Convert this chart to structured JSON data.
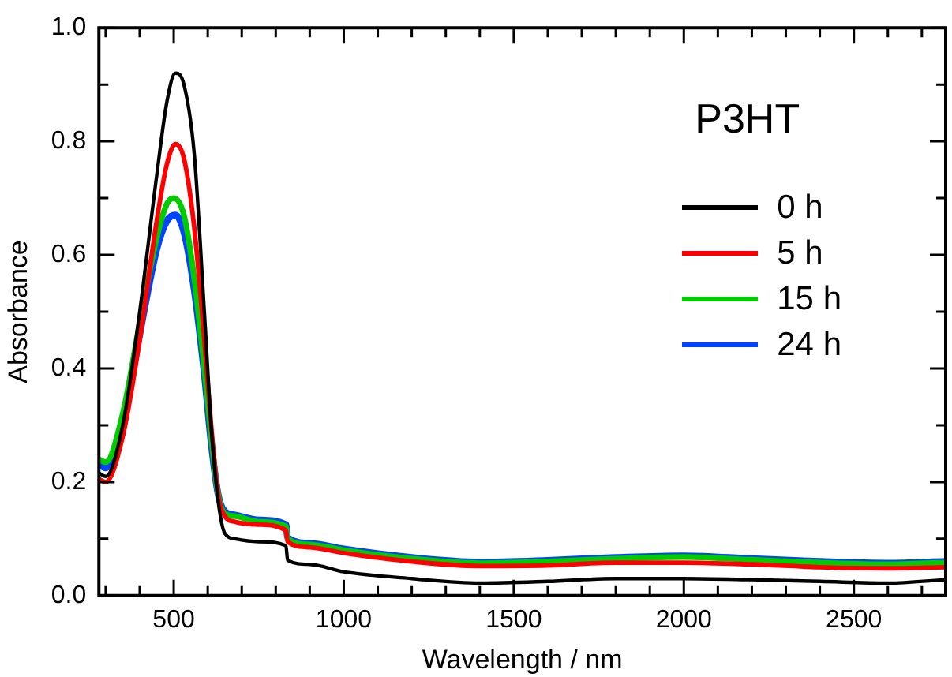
{
  "chart_data": {
    "type": "line",
    "xlabel": "Wavelength / nm",
    "ylabel": "Absorbance",
    "legend_title": "P3HT",
    "legend": "right",
    "grid": false,
    "marker": "none",
    "line_style": "solid",
    "xlim": [
      280,
      2770
    ],
    "ylim": [
      0,
      1
    ],
    "xticks": [
      {
        "value": 300,
        "label": null
      },
      {
        "value": 400,
        "label": null
      },
      500,
      {
        "value": 600,
        "label": null
      },
      {
        "value": 700,
        "label": null
      },
      {
        "value": 800,
        "label": null
      },
      {
        "value": 900,
        "label": null
      },
      1000,
      {
        "value": 1100,
        "label": null
      },
      {
        "value": 1200,
        "label": null
      },
      {
        "value": 1300,
        "label": null
      },
      {
        "value": 1400,
        "label": null
      },
      1500,
      {
        "value": 1600,
        "label": null
      },
      {
        "value": 1700,
        "label": null
      },
      {
        "value": 1800,
        "label": null
      },
      {
        "value": 1900,
        "label": null
      },
      2000,
      {
        "value": 2100,
        "label": null
      },
      {
        "value": 2200,
        "label": null
      },
      {
        "value": 2300,
        "label": null
      },
      {
        "value": 2400,
        "label": null
      },
      2500,
      {
        "value": 2600,
        "label": null
      },
      {
        "value": 2700,
        "label": null
      }
    ],
    "yticks": [
      {
        "value": 0,
        "label": "0.0"
      },
      {
        "value": 0.1,
        "label": null
      },
      0.2,
      {
        "value": 0.3,
        "label": null
      },
      0.4,
      {
        "value": 0.5,
        "label": null
      },
      0.6,
      {
        "value": 0.7,
        "label": null
      },
      0.8,
      {
        "value": 0.9,
        "label": null
      },
      {
        "value": 1,
        "label": "1.0"
      }
    ],
    "series": [
      {
        "name": "0 h",
        "color": "#000000",
        "x": [
          280,
          300,
          350,
          400,
          450,
          480,
          505,
          530,
          560,
          590,
          610,
          630,
          650,
          680,
          750,
          830,
          835,
          900,
          1000,
          1200,
          1400,
          1600,
          1800,
          2000,
          2200,
          2400,
          2600,
          2770
        ],
        "values": [
          0.216,
          0.21,
          0.3,
          0.5,
          0.74,
          0.87,
          0.92,
          0.9,
          0.78,
          0.5,
          0.3,
          0.17,
          0.11,
          0.1,
          0.095,
          0.088,
          0.062,
          0.055,
          0.042,
          0.03,
          0.022,
          0.025,
          0.03,
          0.03,
          0.028,
          0.025,
          0.022,
          0.028
        ]
      },
      {
        "name": "5 h",
        "color": "#ff0000",
        "x": [
          280,
          300,
          350,
          400,
          450,
          480,
          505,
          530,
          560,
          590,
          610,
          630,
          650,
          680,
          750,
          830,
          835,
          900,
          1000,
          1200,
          1400,
          1600,
          1800,
          2000,
          2200,
          2400,
          2600,
          2770
        ],
        "values": [
          0.205,
          0.2,
          0.28,
          0.45,
          0.66,
          0.76,
          0.795,
          0.77,
          0.65,
          0.45,
          0.3,
          0.18,
          0.14,
          0.13,
          0.125,
          0.115,
          0.095,
          0.085,
          0.075,
          0.06,
          0.052,
          0.053,
          0.058,
          0.058,
          0.055,
          0.05,
          0.048,
          0.05
        ]
      },
      {
        "name": "15 h",
        "color": "#00cc00",
        "x": [
          280,
          300,
          350,
          400,
          450,
          480,
          500,
          530,
          560,
          590,
          610,
          630,
          650,
          680,
          750,
          830,
          835,
          900,
          1000,
          1200,
          1400,
          1600,
          1800,
          2000,
          2200,
          2400,
          2600,
          2770
        ],
        "values": [
          0.24,
          0.235,
          0.32,
          0.48,
          0.63,
          0.69,
          0.7,
          0.67,
          0.56,
          0.4,
          0.28,
          0.18,
          0.145,
          0.14,
          0.13,
          0.122,
          0.1,
          0.09,
          0.08,
          0.065,
          0.057,
          0.06,
          0.065,
          0.068,
          0.063,
          0.058,
          0.055,
          0.058
        ]
      },
      {
        "name": "24 h",
        "color": "#0044ff",
        "x": [
          280,
          300,
          350,
          400,
          450,
          480,
          505,
          530,
          560,
          590,
          610,
          630,
          650,
          680,
          750,
          830,
          835,
          900,
          1000,
          1200,
          1400,
          1600,
          1800,
          2000,
          2200,
          2400,
          2600,
          2770
        ],
        "values": [
          0.23,
          0.225,
          0.3,
          0.46,
          0.61,
          0.66,
          0.67,
          0.64,
          0.54,
          0.39,
          0.27,
          0.18,
          0.148,
          0.142,
          0.133,
          0.125,
          0.102,
          0.092,
          0.082,
          0.067,
          0.059,
          0.062,
          0.067,
          0.07,
          0.065,
          0.06,
          0.057,
          0.06
        ]
      }
    ]
  }
}
